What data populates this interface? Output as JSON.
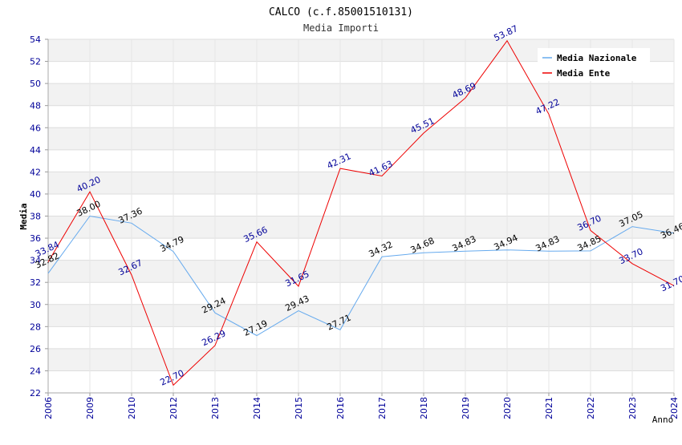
{
  "chart_data": {
    "type": "line",
    "title": "CALCO (c.f.85001510131)",
    "subtitle": "Media Importi",
    "xlabel": "Anno",
    "ylabel": "Media",
    "categories": [
      "2006",
      "2009",
      "2010",
      "2012",
      "2013",
      "2014",
      "2015",
      "2016",
      "2017",
      "2018",
      "2019",
      "2020",
      "2021",
      "2022",
      "2023",
      "2024"
    ],
    "ylim": [
      22,
      54
    ],
    "ytick_step": 2,
    "grid": true,
    "legend_position": "top-right",
    "series": [
      {
        "name": "Media Nazionale",
        "color": "#66aaee",
        "label_color": "#000000",
        "values": [
          32.82,
          38.0,
          37.36,
          34.79,
          29.24,
          27.19,
          29.43,
          27.71,
          34.32,
          34.68,
          34.83,
          34.94,
          34.83,
          34.85,
          37.05,
          36.46
        ]
      },
      {
        "name": "Media Ente",
        "color": "#ee0000",
        "label_color": "#000099",
        "values": [
          33.84,
          40.2,
          32.67,
          22.7,
          26.29,
          35.66,
          31.65,
          42.31,
          41.63,
          45.51,
          48.69,
          53.87,
          47.22,
          36.7,
          33.7,
          31.7
        ]
      }
    ]
  }
}
